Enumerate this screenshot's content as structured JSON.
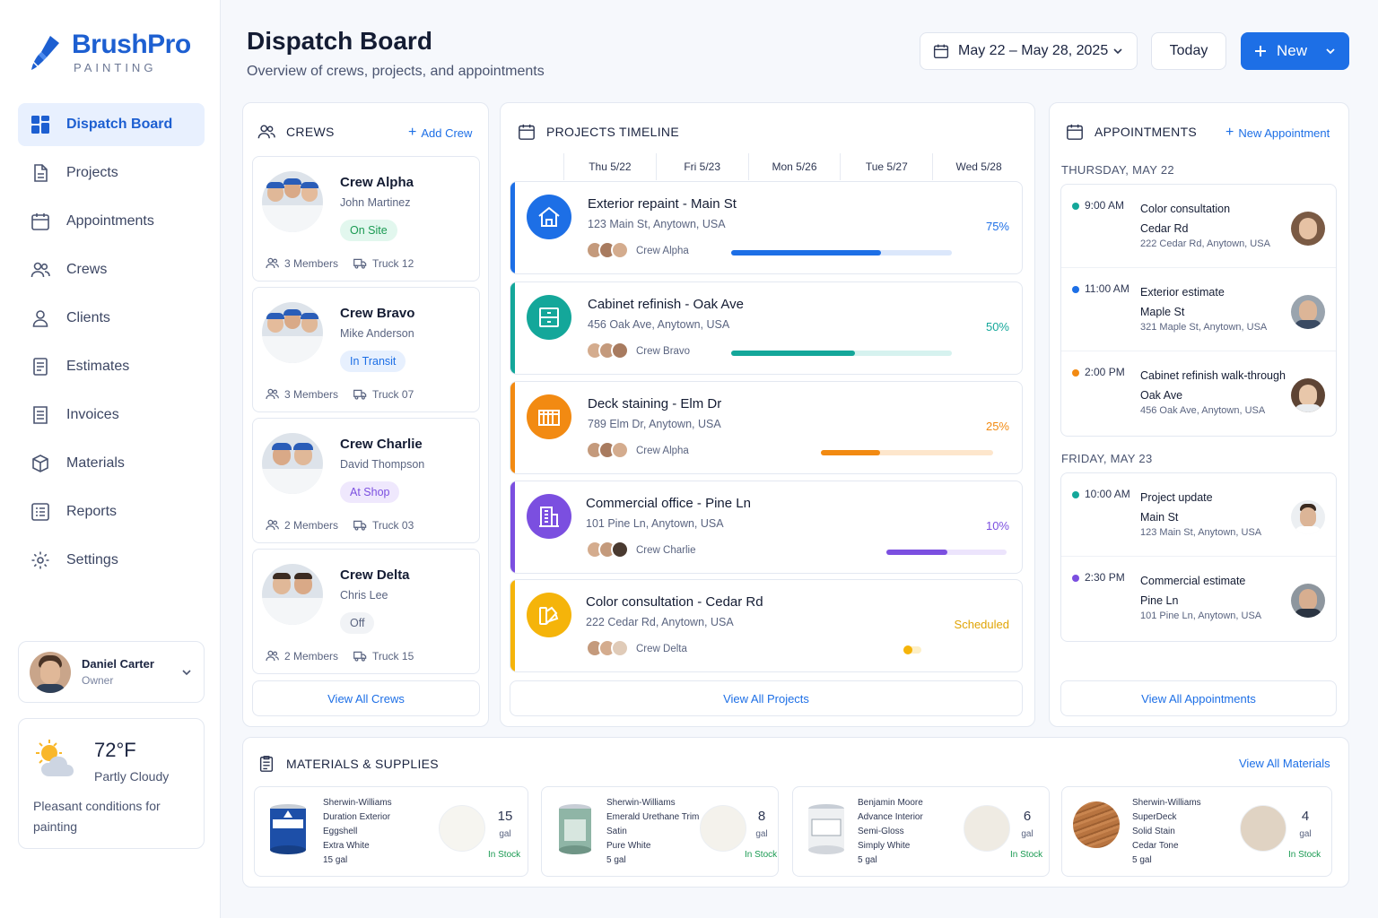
{
  "brand": {
    "name": "BrushPro",
    "sub": "PAINTING"
  },
  "nav": [
    {
      "label": "Dispatch Board",
      "icon": "dashboard-icon",
      "active": true
    },
    {
      "label": "Projects",
      "icon": "document-icon"
    },
    {
      "label": "Appointments",
      "icon": "calendar-icon"
    },
    {
      "label": "Crews",
      "icon": "users-icon"
    },
    {
      "label": "Clients",
      "icon": "person-icon"
    },
    {
      "label": "Estimates",
      "icon": "estimate-icon"
    },
    {
      "label": "Invoices",
      "icon": "invoice-icon"
    },
    {
      "label": "Materials",
      "icon": "box-icon"
    },
    {
      "label": "Reports",
      "icon": "report-icon"
    },
    {
      "label": "Settings",
      "icon": "gear-icon"
    }
  ],
  "user": {
    "name": "Daniel Carter",
    "role": "Owner"
  },
  "weather": {
    "temp": "72°F",
    "condition": "Partly Cloudy",
    "note": "Pleasant conditions for painting"
  },
  "header": {
    "title": "Dispatch Board",
    "subtitle": "Overview of crews, projects, and appointments",
    "date_range": "May 22 – May 28, 2025",
    "today_label": "Today",
    "new_label": "New"
  },
  "crews": {
    "title": "CREWS",
    "add_label": "Add Crew",
    "view_all": "View All Crews",
    "items": [
      {
        "name": "Crew Alpha",
        "lead": "John Martinez",
        "status": "On Site",
        "members": "3 Members",
        "truck": "Truck 12"
      },
      {
        "name": "Crew Bravo",
        "lead": "Mike Anderson",
        "status": "In Transit",
        "members": "3 Members",
        "truck": "Truck 07"
      },
      {
        "name": "Crew Charlie",
        "lead": "David Thompson",
        "status": "At Shop",
        "members": "2 Members",
        "truck": "Truck 03"
      },
      {
        "name": "Crew Delta",
        "lead": "Chris Lee",
        "status": "Off",
        "members": "2 Members",
        "truck": "Truck 15"
      }
    ]
  },
  "timeline": {
    "title": "PROJECTS TIMELINE",
    "days": [
      "Thu 5/22",
      "Fri 5/23",
      "Mon 5/26",
      "Tue 5/27",
      "Wed 5/28"
    ],
    "view_all": "View All Projects",
    "projects": [
      {
        "title": "Exterior repaint - Main St",
        "address": "123 Main St, Anytown, USA",
        "crew": "Crew Alpha",
        "progress": "75%",
        "color": "#1d6fe6"
      },
      {
        "title": "Cabinet refinish - Oak Ave",
        "address": "456 Oak Ave, Anytown, USA",
        "crew": "Crew Bravo",
        "progress": "50%",
        "color": "#14a79a"
      },
      {
        "title": "Deck staining - Elm Dr",
        "address": "789 Elm Dr, Anytown, USA",
        "crew": "Crew Alpha",
        "progress": "25%",
        "color": "#f28a12"
      },
      {
        "title": "Commercial office - Pine Ln",
        "address": "101 Pine Ln, Anytown, USA",
        "crew": "Crew Charlie",
        "progress": "10%",
        "color": "#7b4fe0"
      },
      {
        "title": "Color consultation - Cedar Rd",
        "address": "222 Cedar Rd, Anytown, USA",
        "crew": "Crew Delta",
        "progress": "Scheduled",
        "color": "#f5b40a"
      }
    ]
  },
  "appointments": {
    "title": "APPOINTMENTS",
    "new_label": "New Appointment",
    "view_all": "View All Appointments",
    "days": [
      {
        "label": "THURSDAY, MAY 22",
        "items": [
          {
            "time": "9:00 AM",
            "title": "Color consultation",
            "sub": "Cedar Rd",
            "address": "222 Cedar Rd, Anytown, USA",
            "color": "#14a79a"
          },
          {
            "time": "11:00 AM",
            "title": "Exterior estimate",
            "sub": "Maple St",
            "address": "321 Maple St, Anytown, USA",
            "color": "#1d6fe6"
          },
          {
            "time": "2:00 PM",
            "title": "Cabinet refinish walk-through",
            "sub": "Oak Ave",
            "address": "456 Oak Ave, Anytown, USA",
            "color": "#f28a12"
          }
        ]
      },
      {
        "label": "FRIDAY, MAY 23",
        "items": [
          {
            "time": "10:00 AM",
            "title": "Project update",
            "sub": "Main St",
            "address": "123 Main St, Anytown, USA",
            "color": "#14a79a"
          },
          {
            "time": "2:30 PM",
            "title": "Commercial estimate",
            "sub": "Pine Ln",
            "address": "101 Pine Ln, Anytown, USA",
            "color": "#7b4fe0"
          }
        ]
      }
    ]
  },
  "materials": {
    "title": "MATERIALS & SUPPLIES",
    "view_all": "View All Materials",
    "items": [
      {
        "brand": "Sherwin-Williams",
        "product": "Duration Exterior",
        "finish": "Eggshell",
        "color": "Extra White",
        "size": "15 gal",
        "qty": "15",
        "unit": "gal",
        "stock": "In Stock",
        "swatch": "#f6f5f0"
      },
      {
        "brand": "Sherwin-Williams",
        "product": "Emerald Urethane Trim",
        "finish": "Satin",
        "color": "Pure White",
        "size": "5 gal",
        "qty": "8",
        "unit": "gal",
        "stock": "In Stock",
        "swatch": "#f4f2ec"
      },
      {
        "brand": "Benjamin Moore",
        "product": "Advance Interior",
        "finish": "Semi-Gloss",
        "color": "Simply White",
        "size": "5 gal",
        "qty": "6",
        "unit": "gal",
        "stock": "In Stock",
        "swatch": "#efebe3"
      },
      {
        "brand": "Sherwin-Williams",
        "product": "SuperDeck",
        "finish": "Solid Stain",
        "color": "Cedar Tone",
        "size": "5 gal",
        "qty": "4",
        "unit": "gal",
        "stock": "In Stock",
        "swatch": "#e0d3c3"
      }
    ]
  }
}
